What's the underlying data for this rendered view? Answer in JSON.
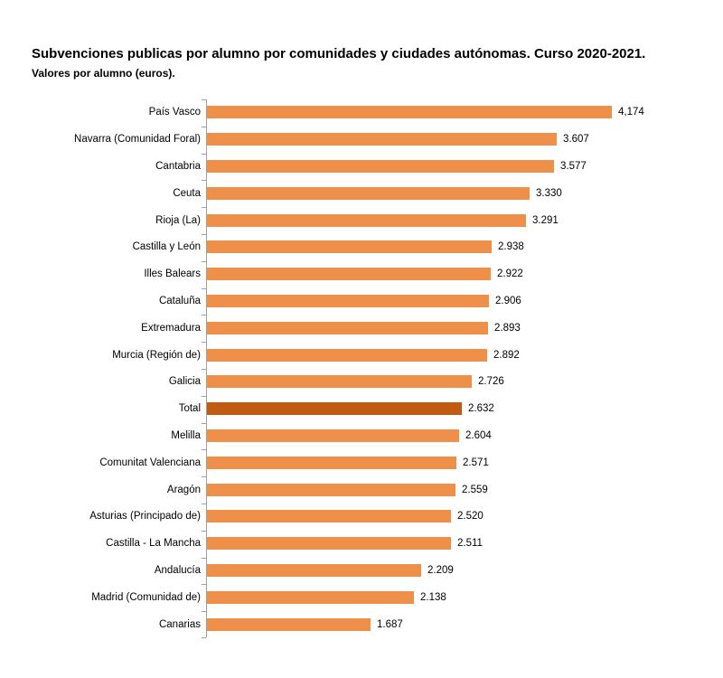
{
  "header": {
    "title": "Subvenciones publicas por alumno por comunidades y ciudades autónomas. Curso 2020-2021.",
    "subtitle": "Valores por alumno (euros)."
  },
  "chart_data": {
    "type": "bar",
    "orientation": "horizontal",
    "title": "Subvenciones publicas por alumno por comunidades y ciudades autónomas. Curso 2020-2021.",
    "subtitle": "Valores por alumno (euros).",
    "xlabel": "",
    "ylabel": "",
    "unit": "euros por alumno",
    "xlim": [
      0,
      4500
    ],
    "grid": false,
    "legend": "none",
    "categories": [
      "País Vasco",
      "Navarra (Comunidad Foral)",
      "Cantabria",
      "Ceuta",
      "Rioja (La)",
      "Castilla y León",
      "Illes Balears",
      "Cataluña",
      "Extremadura",
      "Murcia (Región de)",
      "Galicia",
      "Total",
      "Melilla",
      "Comunitat Valenciana",
      "Aragón",
      "Asturias (Principado de)",
      "Castilla - La Mancha",
      "Andalucía",
      "Madrid (Comunidad de)",
      "Canarias"
    ],
    "values": [
      4174,
      3607,
      3577,
      3330,
      3291,
      2938,
      2922,
      2906,
      2893,
      2892,
      2726,
      2632,
      2604,
      2571,
      2559,
      2520,
      2511,
      2209,
      2138,
      1687
    ],
    "value_labels": [
      "4,174",
      "3.607",
      "3.577",
      "3.330",
      "3.291",
      "2.938",
      "2.922",
      "2.906",
      "2.893",
      "2.892",
      "2.726",
      "2.632",
      "2.604",
      "2.571",
      "2.559",
      "2.520",
      "2.511",
      "2.209",
      "2.138",
      "1.687"
    ],
    "highlight_category": "Total",
    "colors": {
      "bar": "#EE9049",
      "highlight_bar": "#C25A11",
      "axis": "#A0A0A0",
      "text": "#000000"
    }
  }
}
